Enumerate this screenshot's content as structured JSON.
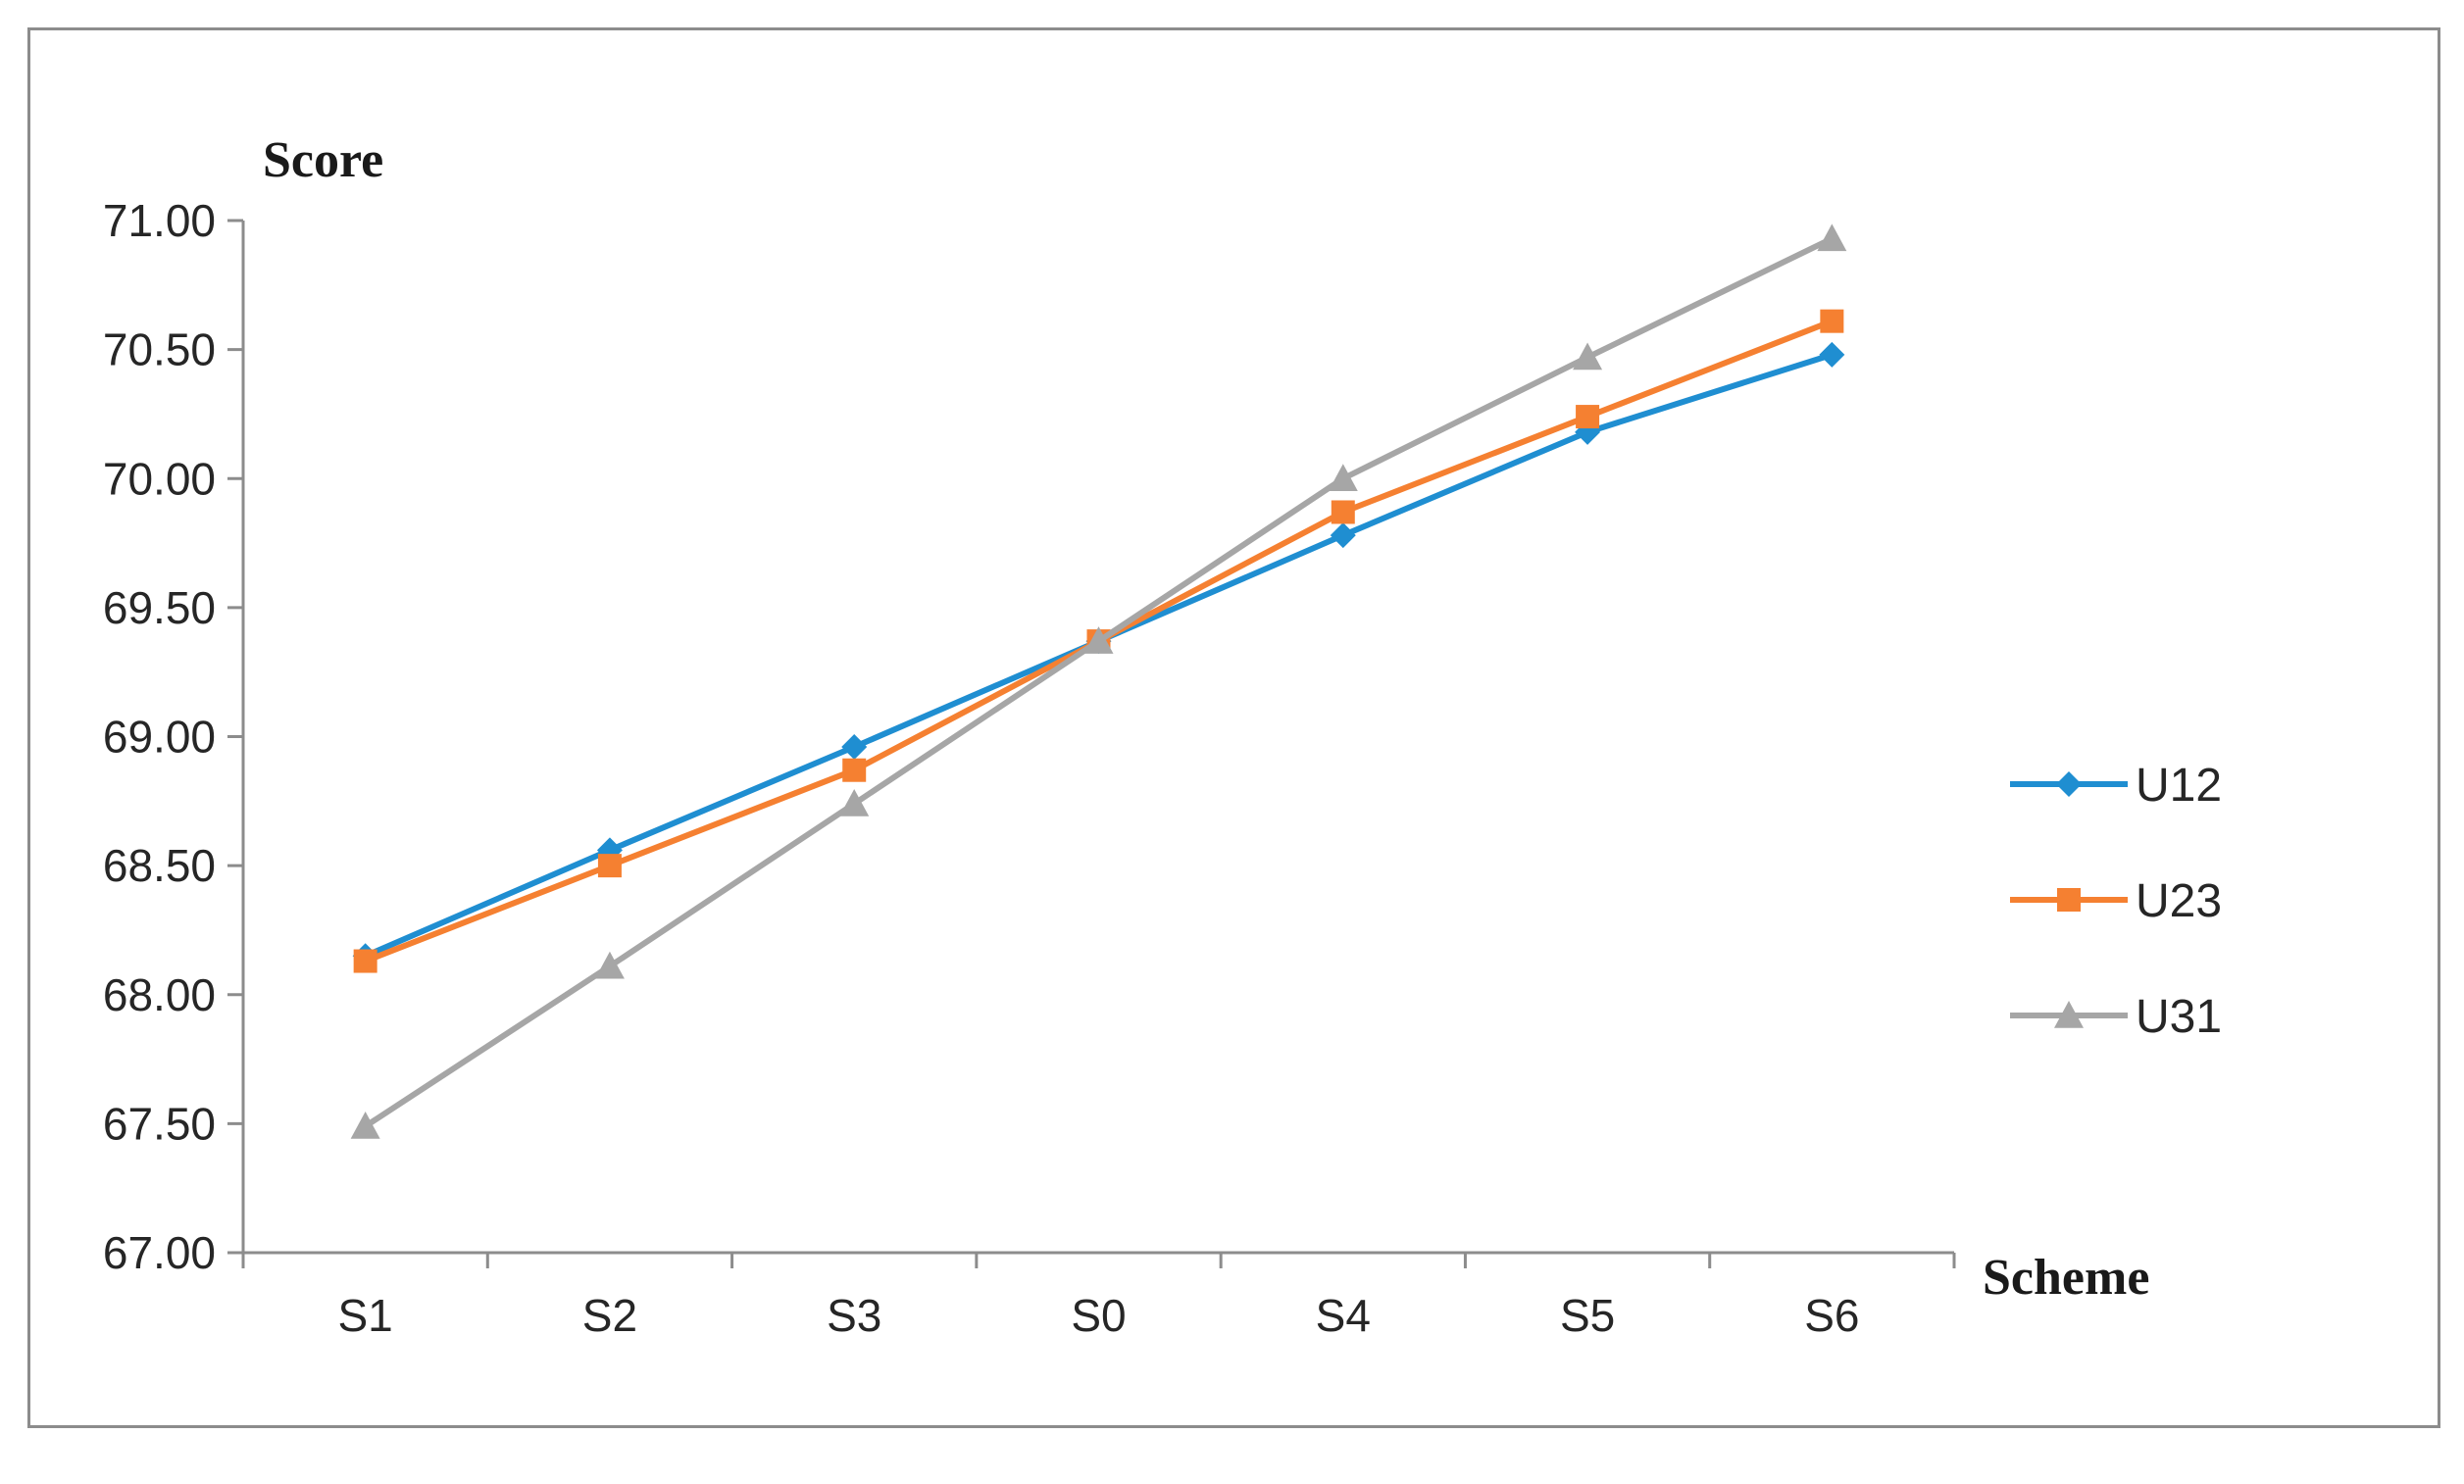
{
  "chart_data": {
    "type": "line",
    "ylabel": "Score",
    "xlabel": "Scheme",
    "categories": [
      "S1",
      "S2",
      "S3",
      "S0",
      "S4",
      "S5",
      "S6"
    ],
    "ylim": [
      67.0,
      71.0
    ],
    "yticks": [
      67.0,
      67.5,
      68.0,
      68.5,
      69.0,
      69.5,
      70.0,
      70.5,
      71.0
    ],
    "ytick_labels": [
      "67.00",
      "67.50",
      "68.00",
      "68.50",
      "69.00",
      "69.50",
      "70.00",
      "70.50",
      "71.00"
    ],
    "grid": false,
    "legend_position": "right",
    "series": [
      {
        "name": "U12",
        "color": "#1f8ed1",
        "marker": "diamond",
        "values": [
          68.15,
          68.56,
          68.96,
          69.37,
          69.78,
          70.18,
          70.48
        ]
      },
      {
        "name": "U23",
        "color": "#f58031",
        "marker": "square",
        "values": [
          68.13,
          68.5,
          68.87,
          69.37,
          69.87,
          70.24,
          70.61
        ]
      },
      {
        "name": "U31",
        "color": "#a6a6a6",
        "marker": "triangle",
        "values": [
          67.49,
          68.11,
          68.74,
          69.37,
          70.0,
          70.47,
          70.93
        ]
      }
    ]
  }
}
